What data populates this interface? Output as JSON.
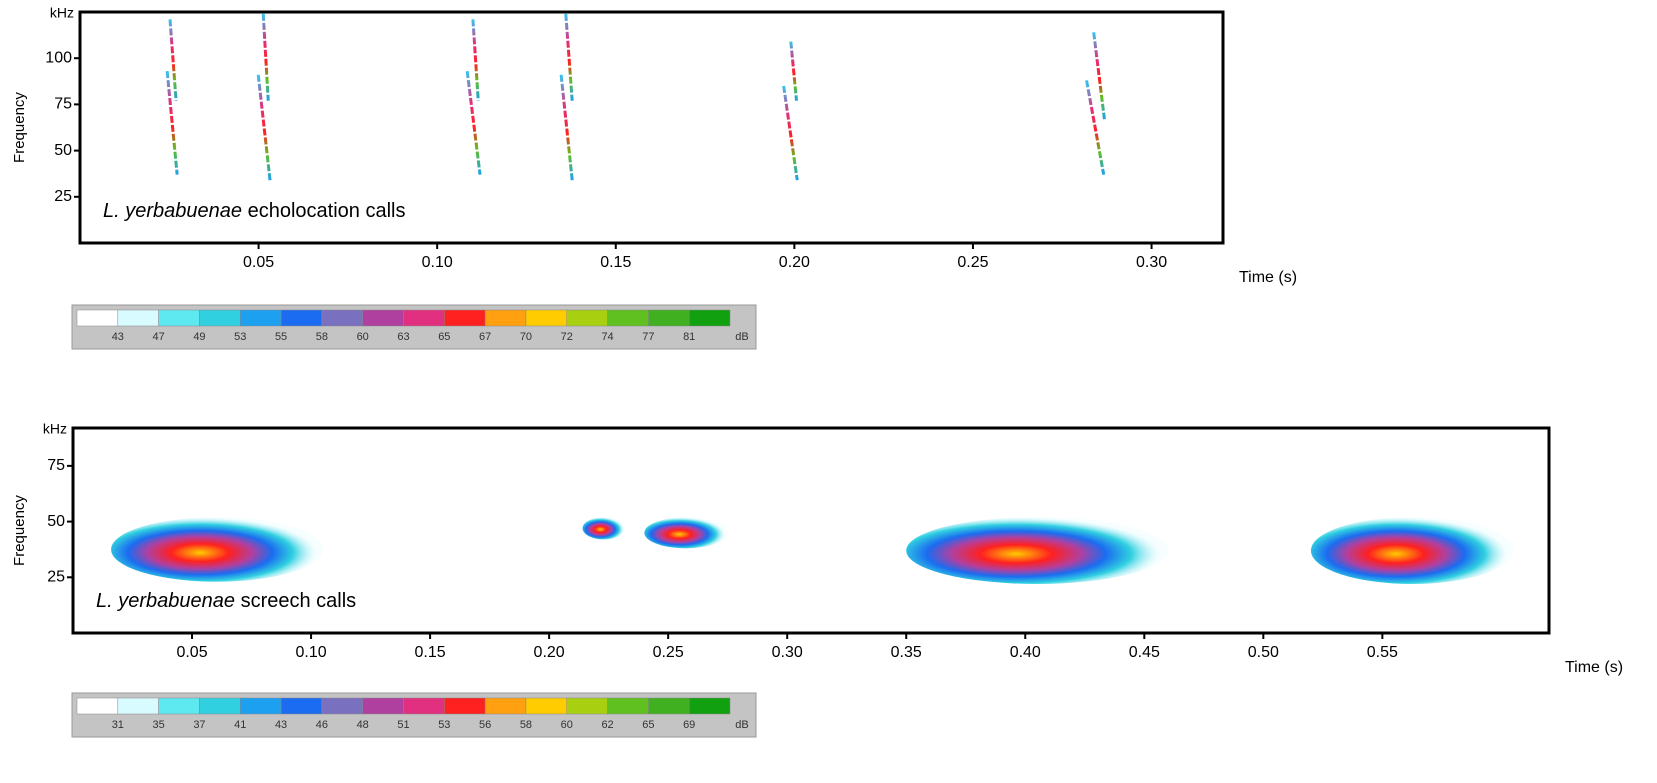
{
  "chart_data": [
    {
      "type": "spectrogram",
      "title": {
        "italic": "L. yerbabuenae",
        "text": "echolocation calls"
      },
      "y_unit": "kHz",
      "y_label": "Frequency",
      "x_label": "Time (s)",
      "xlim": [
        0,
        0.32
      ],
      "ylim": [
        0,
        125
      ],
      "xticks": [
        0.05,
        {
          "value": 0.1,
          "label": "0.10"
        },
        0.15,
        {
          "value": 0.2,
          "label": "0.20"
        },
        0.25,
        {
          "value": 0.3,
          "label": "0.30"
        }
      ],
      "yticks": [
        25,
        50,
        75,
        100
      ],
      "sweeps": [
        {
          "x": [
            0.0244,
            0.0272
          ],
          "y": [
            93,
            37
          ]
        },
        {
          "x": [
            0.0252,
            0.0269
          ],
          "y": [
            121,
            77
          ]
        },
        {
          "x": [
            0.0499,
            0.0532
          ],
          "y": [
            91,
            34
          ]
        },
        {
          "x": [
            0.0513,
            0.0527
          ],
          "y": [
            124,
            77
          ]
        },
        {
          "x": [
            0.1084,
            0.112
          ],
          "y": [
            93,
            37
          ]
        },
        {
          "x": [
            0.11,
            0.1115
          ],
          "y": [
            121,
            77
          ]
        },
        {
          "x": [
            0.1347,
            0.1378
          ],
          "y": [
            91,
            34
          ]
        },
        {
          "x": [
            0.136,
            0.1378
          ],
          "y": [
            124,
            77
          ]
        },
        {
          "x": [
            0.197,
            0.2008
          ],
          "y": [
            85,
            34
          ]
        },
        {
          "x": [
            0.199,
            0.2006
          ],
          "y": [
            109,
            77
          ]
        },
        {
          "x": [
            0.2818,
            0.2866
          ],
          "y": [
            88,
            37
          ]
        },
        {
          "x": [
            0.2838,
            0.2868
          ],
          "y": [
            114,
            67
          ]
        }
      ],
      "colorbar": {
        "colors": [
          "#ffffff",
          "#d8fbff",
          "#5ee8f0",
          "#30d0e0",
          "#1ea0f0",
          "#1b6cf0",
          "#7a70c0",
          "#b040a0",
          "#e0307f",
          "#ff2020",
          "#ffa010",
          "#ffcc00",
          "#a8d010",
          "#60c020",
          "#40b020",
          "#10a010"
        ],
        "ticks": [
          43,
          47,
          49,
          53,
          55,
          58,
          60,
          63,
          65,
          67,
          70,
          72,
          74,
          77,
          81
        ],
        "unit": "dB"
      }
    },
    {
      "type": "spectrogram",
      "title": {
        "italic": "L. yerbabuenae",
        "text": "screech calls"
      },
      "y_unit": "kHz",
      "y_label": "Frequency",
      "x_label": "Time (s)",
      "xlim": [
        0,
        0.62
      ],
      "ylim": [
        0,
        92
      ],
      "xticks": [
        0.05,
        {
          "value": 0.1,
          "label": "0.10"
        },
        0.15,
        {
          "value": 0.2,
          "label": "0.20"
        },
        0.25,
        {
          "value": 0.3,
          "label": "0.30"
        },
        0.35,
        {
          "value": 0.4,
          "label": "0.40"
        },
        0.45,
        {
          "value": 0.5,
          "label": "0.50"
        },
        0.55
      ],
      "yticks": [
        25,
        50,
        75
      ],
      "regions": [
        {
          "x": [
            0.016,
            0.105
          ],
          "y": [
            23,
            52
          ]
        },
        {
          "x": [
            0.214,
            0.232
          ],
          "y": [
            42,
            52
          ]
        },
        {
          "x": [
            0.24,
            0.275
          ],
          "y": [
            38,
            52
          ]
        },
        {
          "x": [
            0.35,
            0.46
          ],
          "y": [
            22,
            52
          ]
        },
        {
          "x": [
            0.52,
            0.605
          ],
          "y": [
            22,
            52
          ]
        }
      ],
      "colorbar": {
        "colors": [
          "#ffffff",
          "#d8fbff",
          "#5ee8f0",
          "#30d0e0",
          "#1ea0f0",
          "#1b6cf0",
          "#7a70c0",
          "#b040a0",
          "#e0307f",
          "#ff2020",
          "#ffa010",
          "#ffcc00",
          "#a8d010",
          "#60c020",
          "#40b020",
          "#10a010"
        ],
        "ticks": [
          31,
          35,
          37,
          41,
          43,
          46,
          48,
          51,
          53,
          56,
          58,
          60,
          62,
          65,
          69
        ],
        "unit": "dB"
      }
    }
  ]
}
